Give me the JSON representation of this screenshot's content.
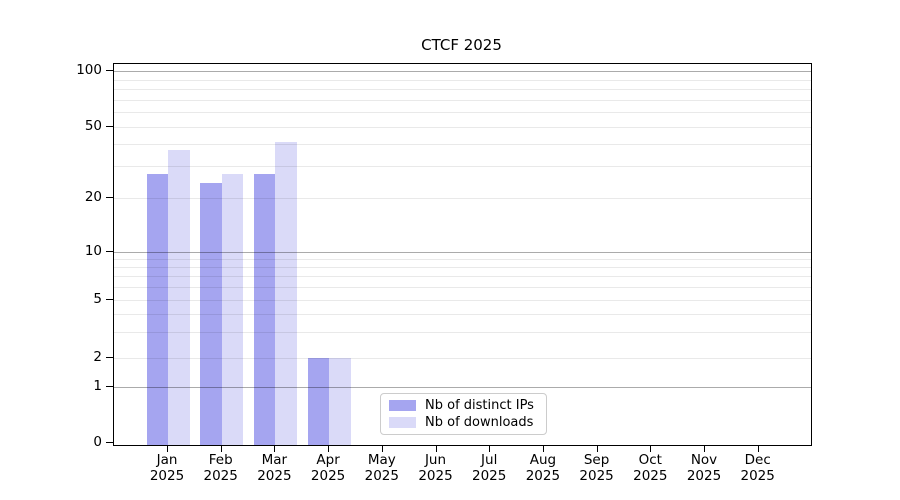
{
  "figure": {
    "title": "CTCF 2025"
  },
  "chart_data": {
    "type": "bar",
    "title": "CTCF 2025",
    "categories": [
      "Jan 2025",
      "Feb 2025",
      "Mar 2025",
      "Apr 2025",
      "May 2025",
      "Jun 2025",
      "Jul 2025",
      "Aug 2025",
      "Sep 2025",
      "Oct 2025",
      "Nov 2025",
      "Dec 2025"
    ],
    "x_months": [
      "Jan",
      "Feb",
      "Mar",
      "Apr",
      "May",
      "Jun",
      "Jul",
      "Aug",
      "Sep",
      "Oct",
      "Nov",
      "Dec"
    ],
    "x_year": "2025",
    "series": [
      {
        "name": "Nb of distinct IPs",
        "color": "#a5a5f0",
        "values": [
          27,
          24,
          27,
          2,
          0,
          0,
          0,
          0,
          0,
          0,
          0,
          0
        ]
      },
      {
        "name": "Nb of downloads",
        "color": "#dadaf8",
        "values": [
          37,
          27,
          41,
          2,
          0,
          0,
          0,
          0,
          0,
          0,
          0,
          0
        ]
      }
    ],
    "yaxis": {
      "scale": "symlog",
      "ticks": [
        0,
        1,
        2,
        5,
        10,
        20,
        50,
        100
      ],
      "major_gridlines": [
        1,
        10,
        100
      ],
      "minor_gridlines": [
        2,
        3,
        4,
        5,
        6,
        7,
        8,
        9,
        20,
        30,
        40,
        50,
        60,
        70,
        80,
        90
      ],
      "ylim": [
        0,
        110
      ],
      "grid_color_major": "#a8a8a8",
      "grid_color_minor": "#e9e9e9"
    },
    "legend": {
      "position": "lower center",
      "entries": [
        "Nb of distinct IPs",
        "Nb of downloads"
      ]
    },
    "background": "#ffffff"
  }
}
